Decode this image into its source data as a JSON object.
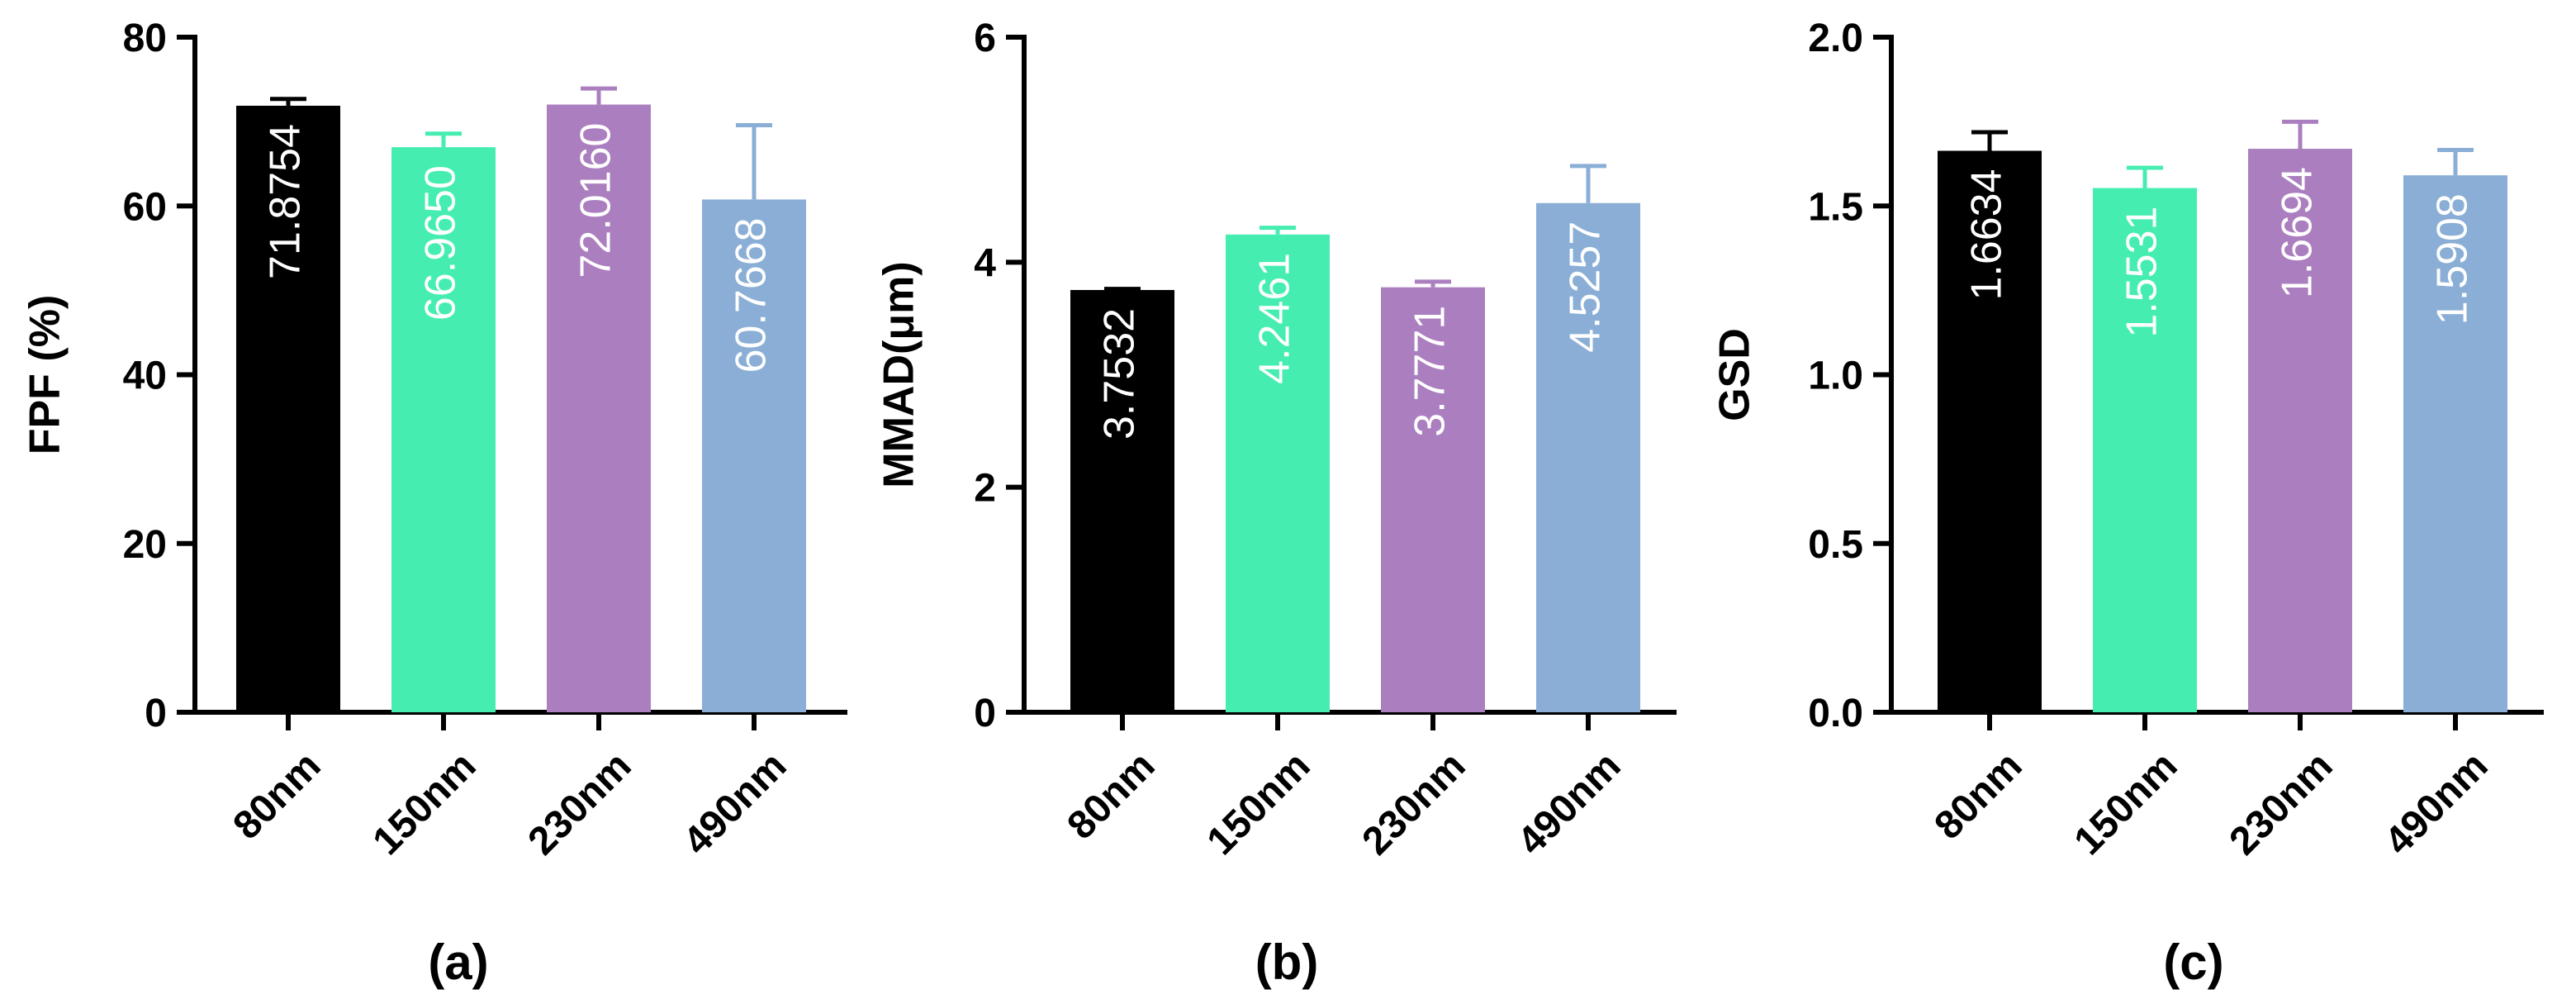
{
  "chart_data": [
    {
      "type": "bar",
      "panel_label": "(a)",
      "title": "",
      "xlabel": "",
      "ylabel": "FPF (%)",
      "ylim": [
        0,
        80
      ],
      "yticks": [
        "0",
        "20",
        "40",
        "60",
        "80"
      ],
      "categories": [
        "80nm",
        "150nm",
        "230nm",
        "490nm"
      ],
      "values": [
        71.8754,
        66.965,
        72.016,
        60.7668
      ],
      "value_labels": [
        "71.8754",
        "66.9650",
        "72.0160",
        "60.7668"
      ],
      "errors": [
        0.8,
        1.6,
        1.9,
        8.8
      ],
      "colors": [
        "#000000",
        "#45eeb0",
        "#ab7fbf",
        "#8aaed6"
      ]
    },
    {
      "type": "bar",
      "panel_label": "(b)",
      "title": "",
      "xlabel": "",
      "ylabel": "MMAD(μm)",
      "ylim": [
        0,
        6
      ],
      "yticks": [
        "0",
        "2",
        "4",
        "6"
      ],
      "categories": [
        "80nm",
        "150nm",
        "230nm",
        "490nm"
      ],
      "values": [
        3.7532,
        4.2461,
        3.7771,
        4.5257
      ],
      "value_labels": [
        "3.7532",
        "4.2461",
        "3.7771",
        "4.5257"
      ],
      "errors": [
        0.01,
        0.06,
        0.05,
        0.33
      ],
      "colors": [
        "#000000",
        "#45eeb0",
        "#ab7fbf",
        "#8aaed6"
      ]
    },
    {
      "type": "bar",
      "panel_label": "(c)",
      "title": "",
      "xlabel": "",
      "ylabel": "GSD",
      "ylim": [
        0,
        2.0
      ],
      "yticks": [
        "0.0",
        "0.5",
        "1.0",
        "1.5",
        "2.0"
      ],
      "categories": [
        "80nm",
        "150nm",
        "230nm",
        "490nm"
      ],
      "values": [
        1.6634,
        1.5531,
        1.6694,
        1.5908
      ],
      "value_labels": [
        "1.6634",
        "1.5531",
        "1.6694",
        "1.5908"
      ],
      "errors": [
        0.055,
        0.06,
        0.08,
        0.075
      ],
      "colors": [
        "#000000",
        "#45eeb0",
        "#ab7fbf",
        "#8aaed6"
      ]
    }
  ]
}
